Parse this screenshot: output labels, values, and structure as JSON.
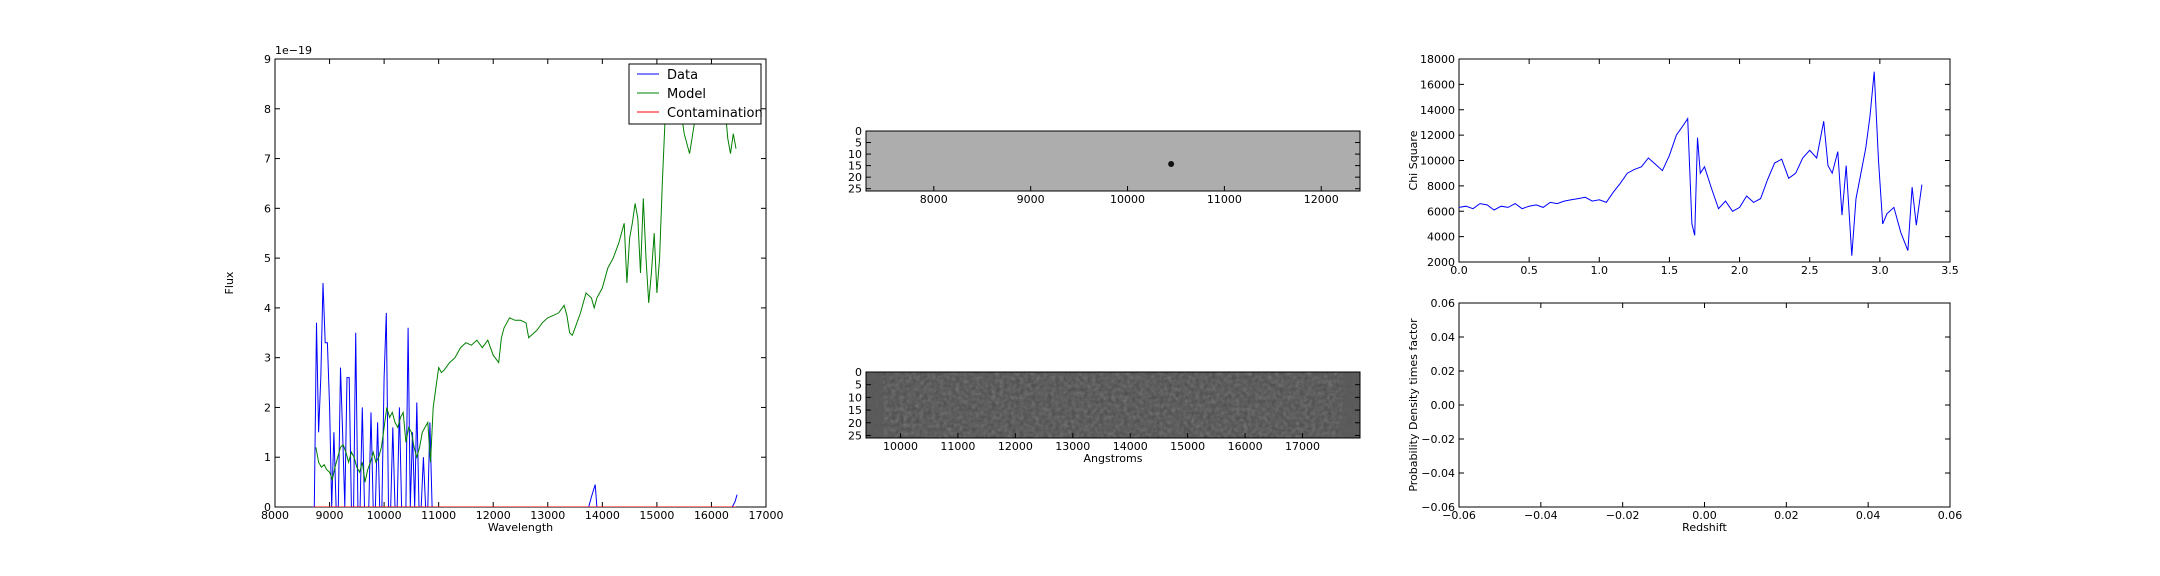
{
  "chart_data": [
    {
      "type": "line",
      "xlabel": "Wavelength",
      "ylabel": "Flux",
      "offset_text": "1e−19",
      "xlim": [
        8000,
        17000
      ],
      "ylim": [
        0,
        9
      ],
      "xticks": [
        8000,
        9000,
        10000,
        11000,
        12000,
        13000,
        14000,
        15000,
        16000,
        17000
      ],
      "yticks": [
        0,
        1,
        2,
        3,
        4,
        5,
        6,
        7,
        8,
        9
      ],
      "legend_position": "top-right",
      "series": [
        {
          "name": "Data",
          "color": "#0000ff",
          "x": [
            8680,
            8720,
            8760,
            8800,
            8840,
            8880,
            8920,
            8960,
            9000,
            9040,
            9080,
            9120,
            9160,
            9200,
            9240,
            9280,
            9320,
            9360,
            9400,
            9440,
            9480,
            9520,
            9560,
            9600,
            9640,
            9680,
            9720,
            9760,
            9800,
            9840,
            9880,
            9920,
            9960,
            10000,
            10040,
            10080,
            10120,
            10160,
            10200,
            10240,
            10280,
            10320,
            10360,
            10400,
            10440,
            10480,
            10520,
            10560,
            10600,
            10640,
            10680,
            10720,
            10760,
            10800,
            10840,
            10880,
            10920,
            10960,
            11000,
            11040,
            11080,
            11120,
            11160,
            11200,
            11240,
            11280,
            11320,
            11360,
            11400,
            11450,
            13700,
            13750,
            13800,
            13840,
            13870,
            13900,
            13930,
            13960,
            16380,
            16430,
            16470
          ],
          "y": [
            0,
            0,
            3.7,
            1.5,
            2.6,
            4.5,
            3.3,
            3.3,
            2.0,
            0,
            1.5,
            0,
            0,
            2.8,
            1.5,
            0,
            2.6,
            2.6,
            0,
            0,
            3.5,
            0,
            0,
            2.0,
            0,
            0,
            0,
            1.9,
            0,
            0,
            1.7,
            0,
            0,
            2.6,
            3.9,
            0,
            0,
            1.6,
            0,
            0,
            2.0,
            0,
            0,
            0,
            3.6,
            0,
            1.5,
            0,
            2.1,
            0,
            0,
            1.0,
            0,
            0,
            1.7,
            0,
            0,
            0,
            0,
            0,
            0,
            0,
            0,
            0,
            0,
            0,
            0,
            0,
            0,
            0,
            0,
            0,
            0.2,
            0.35,
            0.45,
            0,
            0,
            0,
            0,
            0.1,
            0.25
          ]
        },
        {
          "name": "Model",
          "color": "#008000",
          "x": [
            8750,
            8800,
            8850,
            8900,
            8950,
            9000,
            9050,
            9100,
            9150,
            9200,
            9250,
            9300,
            9350,
            9400,
            9450,
            9500,
            9550,
            9600,
            9650,
            9700,
            9750,
            9800,
            9850,
            9900,
            9950,
            10000,
            10050,
            10100,
            10150,
            10200,
            10250,
            10300,
            10350,
            10400,
            10450,
            10500,
            10550,
            10600,
            10650,
            10700,
            10750,
            10800,
            10850,
            10900,
            10950,
            11000,
            11050,
            11100,
            11200,
            11300,
            11400,
            11500,
            11600,
            11700,
            11800,
            11900,
            12000,
            12100,
            12150,
            12200,
            12300,
            12400,
            12500,
            12600,
            12650,
            12700,
            12800,
            12900,
            13000,
            13100,
            13200,
            13300,
            13350,
            13400,
            13450,
            13500,
            13600,
            13700,
            13800,
            13850,
            13900,
            14000,
            14100,
            14200,
            14300,
            14400,
            14450,
            14500,
            14550,
            14600,
            14650,
            14700,
            14750,
            14800,
            14850,
            14900,
            14950,
            15000,
            15050,
            15100,
            15150,
            15200,
            15300,
            15400,
            15500,
            15600,
            15700,
            15800,
            15900,
            16000,
            16100,
            16200,
            16250,
            16300,
            16350,
            16400,
            16450
          ],
          "y": [
            1.2,
            0.9,
            0.8,
            0.85,
            0.75,
            0.7,
            0.55,
            0.8,
            1.0,
            1.2,
            1.25,
            1.1,
            0.9,
            1.1,
            1.0,
            0.8,
            0.7,
            0.9,
            0.5,
            0.75,
            0.9,
            1.1,
            0.9,
            1.0,
            1.2,
            1.6,
            2.0,
            1.8,
            1.9,
            1.7,
            1.6,
            1.8,
            1.9,
            1.3,
            1.6,
            1.5,
            1.2,
            1.0,
            1.2,
            1.5,
            1.6,
            1.7,
            0.9,
            2.0,
            2.4,
            2.8,
            2.7,
            2.75,
            2.9,
            3.0,
            3.2,
            3.3,
            3.25,
            3.35,
            3.2,
            3.35,
            3.05,
            2.9,
            3.4,
            3.6,
            3.8,
            3.75,
            3.75,
            3.7,
            3.4,
            3.45,
            3.55,
            3.7,
            3.8,
            3.85,
            3.9,
            4.05,
            3.85,
            3.5,
            3.45,
            3.6,
            3.9,
            4.3,
            4.2,
            4.0,
            4.2,
            4.4,
            4.8,
            5.0,
            5.3,
            5.7,
            4.5,
            5.4,
            5.7,
            6.1,
            5.8,
            4.7,
            6.2,
            5.0,
            4.1,
            4.7,
            5.5,
            4.3,
            5.0,
            6.5,
            7.8,
            8.5,
            8.6,
            8.3,
            7.5,
            7.1,
            7.8,
            8.5,
            8.3,
            8.6,
            8.5,
            8.3,
            8.0,
            7.4,
            7.1,
            7.5,
            7.2
          ]
        },
        {
          "name": "Contamination",
          "color": "#ff0000",
          "x": [
            8700,
            16450
          ],
          "y": [
            0,
            0
          ]
        }
      ]
    },
    {
      "type": "heatmap",
      "xlim": [
        7300,
        12400
      ],
      "ylim": [
        0,
        26
      ],
      "xticks": [
        8000,
        9000,
        10000,
        11000,
        12000
      ],
      "yticks": [
        0,
        5,
        10,
        15,
        20,
        25
      ]
    },
    {
      "type": "heatmap",
      "xlabel": "Angstroms",
      "xlim": [
        9400,
        18000
      ],
      "ylim": [
        0,
        26
      ],
      "xticks": [
        10000,
        11000,
        12000,
        13000,
        14000,
        15000,
        16000,
        17000
      ],
      "yticks": [
        0,
        5,
        10,
        15,
        20,
        25
      ]
    },
    {
      "type": "line",
      "ylabel": "Chi Square",
      "xlim": [
        0,
        3.5
      ],
      "ylim": [
        2000,
        18000
      ],
      "xticks": [
        0.0,
        0.5,
        1.0,
        1.5,
        2.0,
        2.5,
        3.0,
        3.5
      ],
      "xtick_labels": [
        "0.0",
        "0.5",
        "1.0",
        "1.5",
        "2.0",
        "2.5",
        "3.0",
        "3.5"
      ],
      "yticks": [
        2000,
        4000,
        6000,
        8000,
        10000,
        12000,
        14000,
        16000,
        18000
      ],
      "series": [
        {
          "color": "#0000ff",
          "x": [
            0.0,
            0.05,
            0.1,
            0.15,
            0.2,
            0.25,
            0.3,
            0.35,
            0.4,
            0.45,
            0.5,
            0.55,
            0.6,
            0.65,
            0.7,
            0.75,
            0.8,
            0.85,
            0.9,
            0.95,
            1.0,
            1.05,
            1.1,
            1.15,
            1.2,
            1.25,
            1.3,
            1.35,
            1.4,
            1.45,
            1.5,
            1.55,
            1.6,
            1.63,
            1.66,
            1.68,
            1.7,
            1.72,
            1.75,
            1.8,
            1.85,
            1.9,
            1.95,
            2.0,
            2.05,
            2.1,
            2.15,
            2.2,
            2.25,
            2.3,
            2.35,
            2.4,
            2.45,
            2.5,
            2.55,
            2.6,
            2.63,
            2.66,
            2.7,
            2.73,
            2.76,
            2.8,
            2.83,
            2.86,
            2.9,
            2.93,
            2.96,
            2.99,
            3.02,
            3.05,
            3.1,
            3.15,
            3.2,
            3.23,
            3.26,
            3.3
          ],
          "y": [
            6300,
            6400,
            6200,
            6600,
            6500,
            6100,
            6400,
            6300,
            6600,
            6200,
            6400,
            6500,
            6300,
            6700,
            6600,
            6800,
            6900,
            7000,
            7100,
            6800,
            6900,
            6700,
            7500,
            8200,
            9000,
            9300,
            9500,
            10200,
            9700,
            9200,
            10400,
            12000,
            12800,
            13300,
            5000,
            4100,
            11800,
            9000,
            9500,
            7800,
            6200,
            6800,
            6000,
            6300,
            7200,
            6700,
            7000,
            8500,
            9800,
            10100,
            8600,
            9000,
            10200,
            10800,
            10200,
            13100,
            9600,
            9000,
            10700,
            5700,
            9600,
            2500,
            7000,
            8700,
            11000,
            13500,
            17000,
            10000,
            5000,
            5800,
            6300,
            4300,
            2900,
            7900,
            4900,
            8100
          ]
        }
      ]
    },
    {
      "type": "line",
      "xlabel": "Redshift",
      "ylabel": "Probability Density times factor",
      "xlim": [
        -0.06,
        0.06
      ],
      "ylim": [
        -0.06,
        0.06
      ],
      "xticks": [
        -0.06,
        -0.04,
        -0.02,
        0.0,
        0.02,
        0.04,
        0.06
      ],
      "xtick_labels": [
        "−0.06",
        "−0.04",
        "−0.02",
        "0.00",
        "0.02",
        "0.04",
        "0.06"
      ],
      "yticks": [
        -0.06,
        -0.04,
        -0.02,
        0.0,
        0.02,
        0.04,
        0.06
      ],
      "ytick_labels": [
        "−0.06",
        "−0.04",
        "−0.02",
        "0.00",
        "0.02",
        "0.04",
        "0.06"
      ],
      "series": []
    }
  ]
}
